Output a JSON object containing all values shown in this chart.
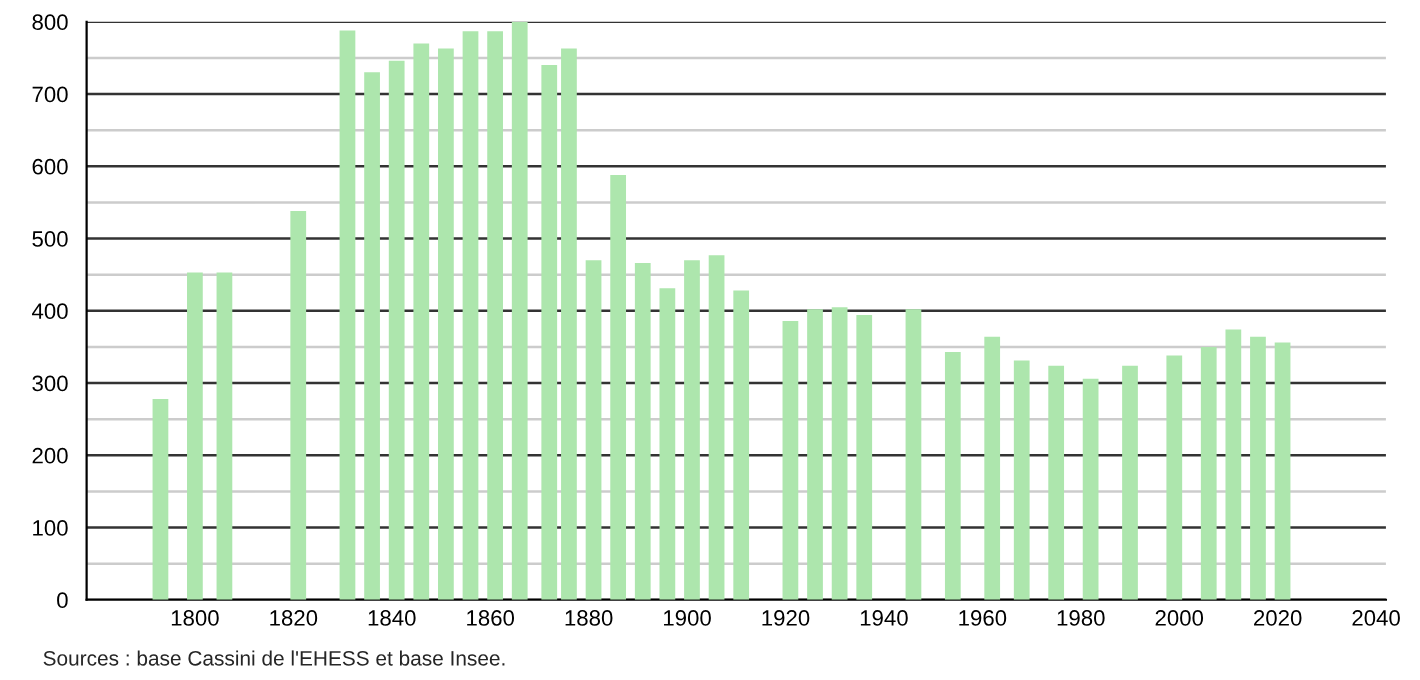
{
  "chart_data": {
    "type": "bar",
    "x": [
      1793,
      1800,
      1806,
      1821,
      1831,
      1836,
      1841,
      1846,
      1851,
      1856,
      1861,
      1866,
      1872,
      1876,
      1881,
      1886,
      1891,
      1896,
      1901,
      1906,
      1911,
      1921,
      1926,
      1931,
      1936,
      1946,
      1954,
      1962,
      1968,
      1975,
      1982,
      1990,
      1999,
      2006,
      2011,
      2016,
      2021
    ],
    "values": [
      278,
      453,
      453,
      538,
      788,
      730,
      746,
      770,
      763,
      787,
      787,
      800,
      740,
      763,
      470,
      588,
      466,
      431,
      470,
      477,
      428,
      386,
      402,
      405,
      394,
      402,
      343,
      364,
      331,
      324,
      306,
      324,
      338,
      350,
      374,
      364,
      356
    ],
    "color": "#ade6ad",
    "xlim": [
      1778,
      2042
    ],
    "xticks": [
      1800,
      1820,
      1840,
      1860,
      1880,
      1900,
      1920,
      1940,
      1960,
      1980,
      2000,
      2020,
      2040
    ],
    "ylim": [
      0,
      800
    ],
    "yticks": [
      0,
      {
        "value": 50,
        "label": null
      },
      100,
      {
        "value": 150,
        "label": null
      },
      200,
      {
        "value": 250,
        "label": null
      },
      300,
      {
        "value": 350,
        "label": null
      },
      400,
      {
        "value": 450,
        "label": null
      },
      500,
      {
        "value": 550,
        "label": null
      },
      600,
      {
        "value": 650,
        "label": null
      },
      700,
      {
        "value": 750,
        "label": null
      },
      800
    ],
    "grid": "y",
    "annotations": [
      "Sources : base Cassini de l'EHESS et base Insee."
    ]
  }
}
